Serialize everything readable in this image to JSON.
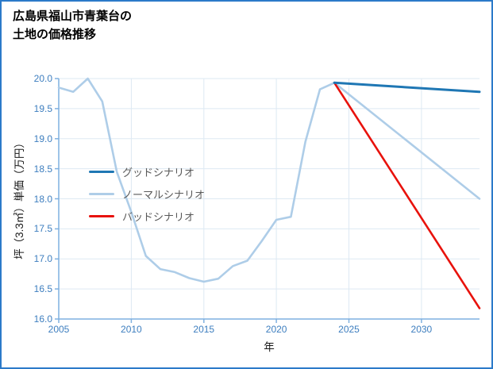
{
  "header": {
    "title_line1": "広島県福山市青葉台の",
    "title_line2": "土地の価格推移"
  },
  "chart_data": {
    "type": "line",
    "title": "広島県福山市青葉台の土地の価格推移",
    "xlabel": "年",
    "ylabel": "坪（3.3㎡）単価（万円）",
    "xlim": [
      2005,
      2034
    ],
    "ylim": [
      16.0,
      20.0
    ],
    "grid": true,
    "legend_position": "center-left",
    "xticks": [
      2005,
      2010,
      2015,
      2020,
      2025,
      2030
    ],
    "xtick_labels": [
      "2005",
      "2010",
      "2015",
      "2020",
      "2025",
      "2030"
    ],
    "yticks": [
      16.0,
      16.5,
      17.0,
      17.5,
      18.0,
      18.5,
      19.0,
      19.5,
      20.0
    ],
    "ytick_labels": [
      "16.0",
      "16.5",
      "17.0",
      "17.5",
      "18.0",
      "18.5",
      "19.0",
      "19.5",
      "20.0"
    ],
    "colors": {
      "frame_border": "#2b7ac9",
      "grid": "#dde9f3",
      "spine": "#7fb0e0",
      "tick_text": "#3d7ebf"
    },
    "series": [
      {
        "name": "グッドシナリオ",
        "color": "#1f77b4",
        "width": 3,
        "z": 3,
        "x": [
          2024,
          2034
        ],
        "y": [
          19.93,
          19.78
        ]
      },
      {
        "name": "ノーマルシナリオ",
        "color": "#aecde8",
        "width": 2.6,
        "z": 1,
        "x": [
          2005,
          2006,
          2007,
          2008,
          2009,
          2010,
          2011,
          2012,
          2013,
          2014,
          2015,
          2016,
          2017,
          2018,
          2019,
          2020,
          2021,
          2022,
          2023,
          2024,
          2034
        ],
        "y": [
          19.85,
          19.78,
          20.0,
          19.62,
          18.45,
          17.78,
          17.05,
          16.83,
          16.78,
          16.68,
          16.62,
          16.67,
          16.88,
          16.97,
          17.3,
          17.65,
          17.7,
          18.95,
          19.82,
          19.93,
          18.0
        ]
      },
      {
        "name": "バッドシナリオ",
        "color": "#e8120c",
        "width": 2.6,
        "z": 2,
        "x": [
          2024,
          2034
        ],
        "y": [
          19.93,
          16.18
        ]
      }
    ]
  }
}
